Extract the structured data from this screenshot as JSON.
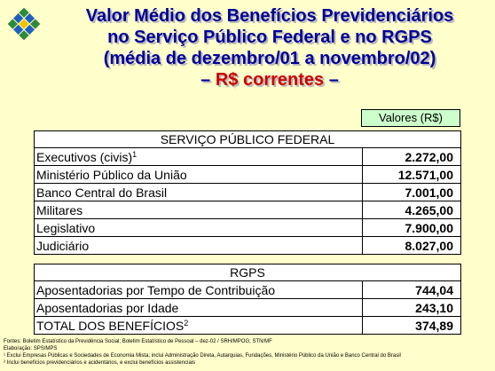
{
  "title": {
    "line1": "Valor Médio dos Benefícios Previdenciários",
    "line2": "no Serviço Público Federal e no RGPS",
    "line3": "(média de dezembro/01 a novembro/02)",
    "line4_dash_left": "– ",
    "line4_text": "R$ correntes",
    "line4_dash_right": " –"
  },
  "unit_label": "Valores (R$)",
  "table_federal": {
    "header": "SERVIÇO PÚBLICO FEDERAL",
    "rows": [
      {
        "label": "Executivos (civis)",
        "sup": "1",
        "value": "2.272,00"
      },
      {
        "label": "Ministério Público da União",
        "value": "12.571,00"
      },
      {
        "label": "Banco Central do Brasil",
        "value": "7.001,00"
      },
      {
        "label": "Militares",
        "value": "4.265,00"
      },
      {
        "label": "Legislativo",
        "value": "7.900,00"
      },
      {
        "label": "Judiciário",
        "value": "8.027,00"
      }
    ]
  },
  "table_rgps": {
    "header": "RGPS",
    "rows": [
      {
        "label": "Aposentadorias por Tempo de Contribuição",
        "value": "744,04"
      },
      {
        "label": "Aposentadorias por Idade",
        "value": "243,10"
      },
      {
        "label": "TOTAL DOS BENEFÍCIOS",
        "sup": "2",
        "value": "374,89"
      }
    ]
  },
  "footnotes": {
    "sources": "Fontes: Boletim Estatístico da Previdência Social; Boletim Estatístico de Pessoal – dez-02 / SRH/MPOG; STN/MF",
    "elaboration": "Elaboração: SPS/MPS",
    "note1": "¹ Exclui Empresas Públicas e Sociedades de Economia Mista; inclui Administração Direta, Autarquias, Fundações, Ministério Público da União e Banco Central do Brasil",
    "note2": "² Inclui benefícios previdenciários e acidentários, e exclui benefícios assistenciais"
  },
  "colors": {
    "background": "#ffffcc",
    "title": "#000099",
    "subtitle": "#cc0000",
    "unit_box": "#ccffcc"
  },
  "icons": {
    "logo": "previdencia-social-logo"
  }
}
